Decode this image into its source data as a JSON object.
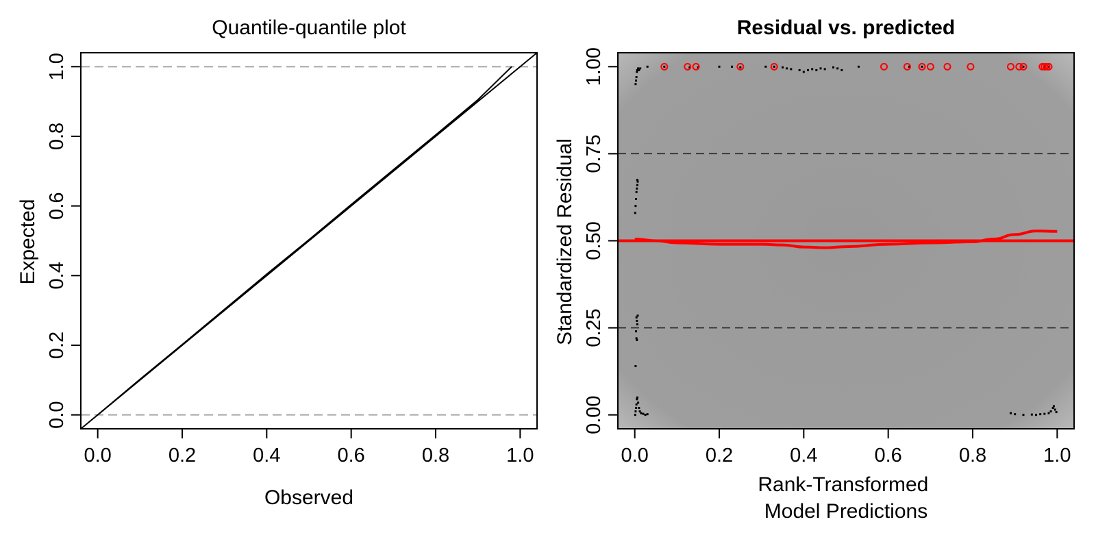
{
  "chart_data": [
    {
      "type": "line",
      "title": "Quantile-quantile plot",
      "xlabel": "Observed",
      "ylabel": "Expected",
      "xlim": [
        -0.04,
        1.04
      ],
      "ylim": [
        -0.04,
        1.04
      ],
      "xticks": [
        "0.0",
        "0.2",
        "0.4",
        "0.6",
        "0.8",
        "1.0"
      ],
      "yticks": [
        "0.0",
        "0.2",
        "0.4",
        "0.6",
        "0.8",
        "1.0"
      ],
      "reference_hlines": [
        0.0,
        1.0
      ],
      "reference_line": "y = x",
      "series": [
        {
          "x": [
            0.0,
            0.1,
            0.2,
            0.3,
            0.4,
            0.5,
            0.6,
            0.7,
            0.8,
            0.9,
            0.98
          ],
          "y": [
            0.0,
            0.102,
            0.202,
            0.303,
            0.404,
            0.503,
            0.604,
            0.704,
            0.804,
            0.905,
            1.0
          ]
        }
      ]
    },
    {
      "type": "scatter",
      "title": "Residual vs. predicted",
      "xlabel": [
        "Rank-Transformed",
        "Model Predictions"
      ],
      "ylabel": "Standardized Residual",
      "xlim": [
        -0.04,
        1.04
      ],
      "ylim": [
        -0.04,
        1.04
      ],
      "xticks": [
        "0.0",
        "0.2",
        "0.4",
        "0.6",
        "0.8",
        "1.0"
      ],
      "yticks": [
        "0.00",
        "0.25",
        "0.50",
        "0.75",
        "1.00"
      ],
      "reference_hlines": [
        0.25,
        0.5,
        0.75
      ],
      "background": "density (grey)",
      "outliers": {
        "y": 1.0,
        "x": [
          0.07,
          0.125,
          0.145,
          0.25,
          0.33,
          0.59,
          0.645,
          0.68,
          0.7,
          0.74,
          0.795,
          0.89,
          0.91,
          0.92,
          0.965,
          0.97,
          0.975,
          0.98
        ]
      },
      "points": [
        [
          0.002,
          0.95
        ],
        [
          0.003,
          0.96
        ],
        [
          0.004,
          0.97
        ],
        [
          0.005,
          0.985
        ],
        [
          0.006,
          0.99
        ],
        [
          0.008,
          0.995
        ],
        [
          0.01,
          0.99
        ],
        [
          0.013,
          0.995
        ],
        [
          0.03,
          1.0
        ],
        [
          0.07,
          1.0
        ],
        [
          0.13,
          0.998
        ],
        [
          0.15,
          0.998
        ],
        [
          0.2,
          1.0
        ],
        [
          0.23,
          1.0
        ],
        [
          0.25,
          0.998
        ],
        [
          0.31,
          1.0
        ],
        [
          0.33,
          1.0
        ],
        [
          0.35,
          0.998
        ],
        [
          0.36,
          0.995
        ],
        [
          0.37,
          0.993
        ],
        [
          0.39,
          0.99
        ],
        [
          0.4,
          0.985
        ],
        [
          0.41,
          0.99
        ],
        [
          0.42,
          0.993
        ],
        [
          0.43,
          0.99
        ],
        [
          0.44,
          0.995
        ],
        [
          0.45,
          0.993
        ],
        [
          0.47,
          0.998
        ],
        [
          0.48,
          0.995
        ],
        [
          0.49,
          0.99
        ],
        [
          0.53,
          1.0
        ],
        [
          0.65,
          1.0
        ],
        [
          0.68,
          1.0
        ],
        [
          0.92,
          1.0
        ],
        [
          0.97,
          1.0
        ],
        [
          0.98,
          1.0
        ],
        [
          0.001,
          0.58
        ],
        [
          0.002,
          0.6
        ],
        [
          0.003,
          0.62
        ],
        [
          0.004,
          0.64
        ],
        [
          0.005,
          0.65
        ],
        [
          0.006,
          0.66
        ],
        [
          0.007,
          0.67
        ],
        [
          0.006,
          0.675
        ],
        [
          0.004,
          0.28
        ],
        [
          0.005,
          0.27
        ],
        [
          0.006,
          0.26
        ],
        [
          0.007,
          0.285
        ],
        [
          0.003,
          0.24
        ],
        [
          0.004,
          0.22
        ],
        [
          0.005,
          0.215
        ],
        [
          0.002,
          0.14
        ],
        [
          0.001,
          0.0
        ],
        [
          0.002,
          0.01
        ],
        [
          0.003,
          0.02
        ],
        [
          0.004,
          0.03
        ],
        [
          0.005,
          0.045
        ],
        [
          0.006,
          0.05
        ],
        [
          0.008,
          0.035
        ],
        [
          0.01,
          0.02
        ],
        [
          0.012,
          0.01
        ],
        [
          0.015,
          0.005
        ],
        [
          0.02,
          0.003
        ],
        [
          0.025,
          0.0
        ],
        [
          0.03,
          0.002
        ],
        [
          0.89,
          0.005
        ],
        [
          0.9,
          0.002
        ],
        [
          0.92,
          0.0
        ],
        [
          0.94,
          0.001
        ],
        [
          0.95,
          0.0
        ],
        [
          0.96,
          0.002
        ],
        [
          0.97,
          0.003
        ],
        [
          0.98,
          0.005
        ],
        [
          0.985,
          0.01
        ],
        [
          0.99,
          0.02
        ],
        [
          0.992,
          0.025
        ],
        [
          0.995,
          0.015
        ],
        [
          0.998,
          0.008
        ]
      ],
      "quantile_fit": {
        "x": [
          0.0,
          0.05,
          0.1,
          0.2,
          0.3,
          0.35,
          0.4,
          0.45,
          0.5,
          0.6,
          0.7,
          0.8,
          0.85,
          0.9,
          0.95,
          1.0
        ],
        "y": [
          0.505,
          0.5,
          0.494,
          0.49,
          0.49,
          0.488,
          0.482,
          0.48,
          0.483,
          0.49,
          0.494,
          0.497,
          0.505,
          0.518,
          0.528,
          0.527
        ]
      },
      "colors": {
        "outlier": "#ff0000",
        "fit": "#ff0000",
        "point": "#000000"
      }
    }
  ]
}
